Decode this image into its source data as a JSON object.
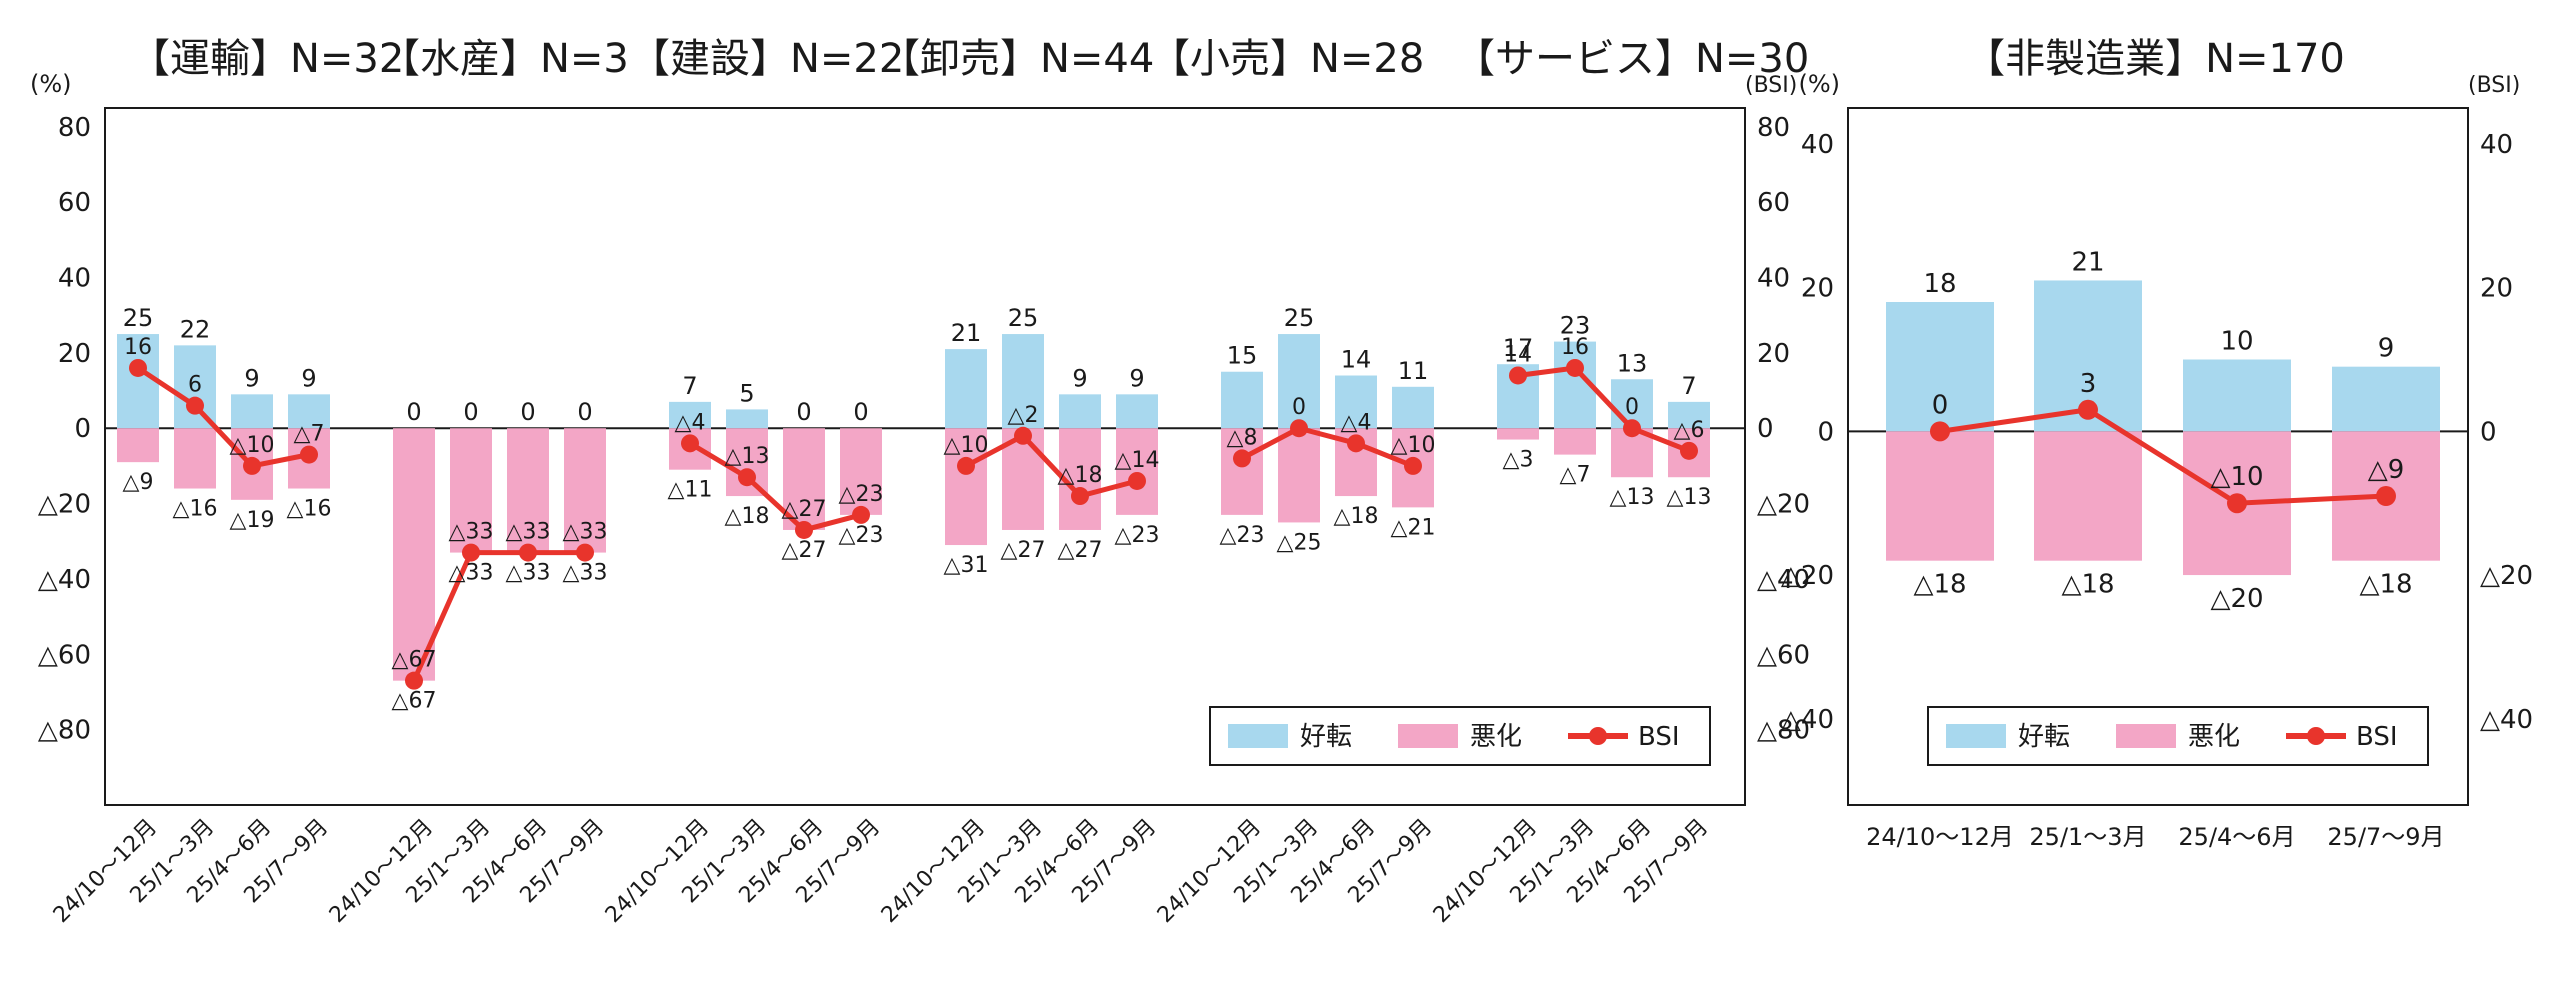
{
  "colors": {
    "good": "#a8d8ee",
    "bad": "#f3a6c6",
    "bsi": "#e8342c",
    "frame": "#1a1a1a"
  },
  "legend": {
    "good": "好転",
    "bad": "悪化",
    "bsi": "BSI"
  },
  "chart_data": [
    {
      "type": "bar",
      "title": "",
      "ylabel": "(%)",
      "y2label": "(BSI)",
      "ylim": [
        -100,
        85
      ],
      "yticks": [
        {
          "v": 80,
          "label": "80"
        },
        {
          "v": 60,
          "label": "60"
        },
        {
          "v": 40,
          "label": "40"
        },
        {
          "v": 20,
          "label": "20"
        },
        {
          "v": 0,
          "label": "0"
        },
        {
          "v": -20,
          "label": "△20"
        },
        {
          "v": -40,
          "label": "△40"
        },
        {
          "v": -60,
          "label": "△60"
        },
        {
          "v": -80,
          "label": "△80"
        }
      ],
      "legend_position": "bottom-right",
      "groups": [
        {
          "header": "【運輸】N=32",
          "categories": [
            "24/10～12月",
            "25/1～3月",
            "25/4～6月",
            "25/7～9月"
          ],
          "good": [
            25,
            22,
            9,
            9
          ],
          "good_labels": [
            "25",
            "22",
            "9",
            "9"
          ],
          "bad": [
            -9,
            -16,
            -19,
            -16
          ],
          "bad_labels": [
            "△9",
            "△16",
            "△19",
            "△16"
          ],
          "bsi": [
            16,
            6,
            -10,
            -7
          ],
          "bsi_labels": [
            "16",
            "6",
            "△10",
            "△7"
          ]
        },
        {
          "header": "【水産】N=3",
          "categories": [
            "24/10～12月",
            "25/1～3月",
            "25/4～6月",
            "25/7～9月"
          ],
          "good": [
            0,
            0,
            0,
            0
          ],
          "good_labels": [
            "0",
            "0",
            "0",
            "0"
          ],
          "bad": [
            -67,
            -33,
            -33,
            -33
          ],
          "bad_labels": [
            "△67",
            "△33",
            "△33",
            "△33"
          ],
          "bsi": [
            -67,
            -33,
            -33,
            -33
          ],
          "bsi_labels": [
            "△67",
            "△33",
            "△33",
            "△33"
          ]
        },
        {
          "header": "【建設】N=22",
          "categories": [
            "24/10～12月",
            "25/1～3月",
            "25/4～6月",
            "25/7～9月"
          ],
          "good": [
            7,
            5,
            0,
            0
          ],
          "good_labels": [
            "7",
            "5",
            "0",
            "0"
          ],
          "bad": [
            -11,
            -18,
            -27,
            -23
          ],
          "bad_labels": [
            "△11",
            "△18",
            "△27",
            "△23"
          ],
          "bsi": [
            -4,
            -13,
            -27,
            -23
          ],
          "bsi_labels": [
            "△4",
            "△13",
            "△27",
            "△23"
          ]
        },
        {
          "header": "【卸売】N=44",
          "categories": [
            "24/10～12月",
            "25/1～3月",
            "25/4～6月",
            "25/7～9月"
          ],
          "good": [
            21,
            25,
            9,
            9
          ],
          "good_labels": [
            "21",
            "25",
            "9",
            "9"
          ],
          "bad": [
            -31,
            -27,
            -27,
            -23
          ],
          "bad_labels": [
            "△31",
            "△27",
            "△27",
            "△23"
          ],
          "bsi": [
            -10,
            -2,
            -18,
            -14
          ],
          "bsi_labels": [
            "△10",
            "△2",
            "△18",
            "△14"
          ]
        },
        {
          "header": "【小売】N=28",
          "categories": [
            "24/10～12月",
            "25/1～3月",
            "25/4～6月",
            "25/7～9月"
          ],
          "good": [
            15,
            25,
            14,
            11
          ],
          "good_labels": [
            "15",
            "25",
            "14",
            "11"
          ],
          "bad": [
            -23,
            -25,
            -18,
            -21
          ],
          "bad_labels": [
            "△23",
            "△25",
            "△18",
            "△21"
          ],
          "bsi": [
            -8,
            0,
            -4,
            -10
          ],
          "bsi_labels": [
            "△8",
            "0",
            "△4",
            "△10"
          ]
        },
        {
          "header": "【サービス】N=30",
          "categories": [
            "24/10～12月",
            "25/1～3月",
            "25/4～6月",
            "25/7～9月"
          ],
          "good": [
            17,
            23,
            13,
            7
          ],
          "good_labels": [
            "17",
            "23",
            "13",
            "7"
          ],
          "bad": [
            -3,
            -7,
            -13,
            -13
          ],
          "bad_labels": [
            "△3",
            "△7",
            "△13",
            "△13"
          ],
          "bsi": [
            14,
            16,
            0,
            -6
          ],
          "bsi_labels": [
            "14",
            "16",
            "0",
            "△6"
          ]
        }
      ]
    },
    {
      "type": "bar",
      "title": "【非製造業】N=170",
      "ylabel": "(%)",
      "y2label": "(BSI)",
      "ylim": [
        -52,
        45
      ],
      "yticks": [
        {
          "v": 40,
          "label": "40"
        },
        {
          "v": 20,
          "label": "20"
        },
        {
          "v": 0,
          "label": "0"
        },
        {
          "v": -20,
          "label": "△20"
        },
        {
          "v": -40,
          "label": "△40"
        }
      ],
      "legend_position": "bottom-right",
      "categories": [
        "24/10～12月",
        "25/1～3月",
        "25/4～6月",
        "25/7～9月"
      ],
      "good": [
        18,
        21,
        10,
        9
      ],
      "good_labels": [
        "18",
        "21",
        "10",
        "9"
      ],
      "bad": [
        -18,
        -18,
        -20,
        -18
      ],
      "bad_labels": [
        "△18",
        "△18",
        "△20",
        "△18"
      ],
      "bsi": [
        0,
        3,
        -10,
        -9
      ],
      "bsi_labels": [
        "0",
        "3",
        "△10",
        "△9"
      ]
    }
  ]
}
